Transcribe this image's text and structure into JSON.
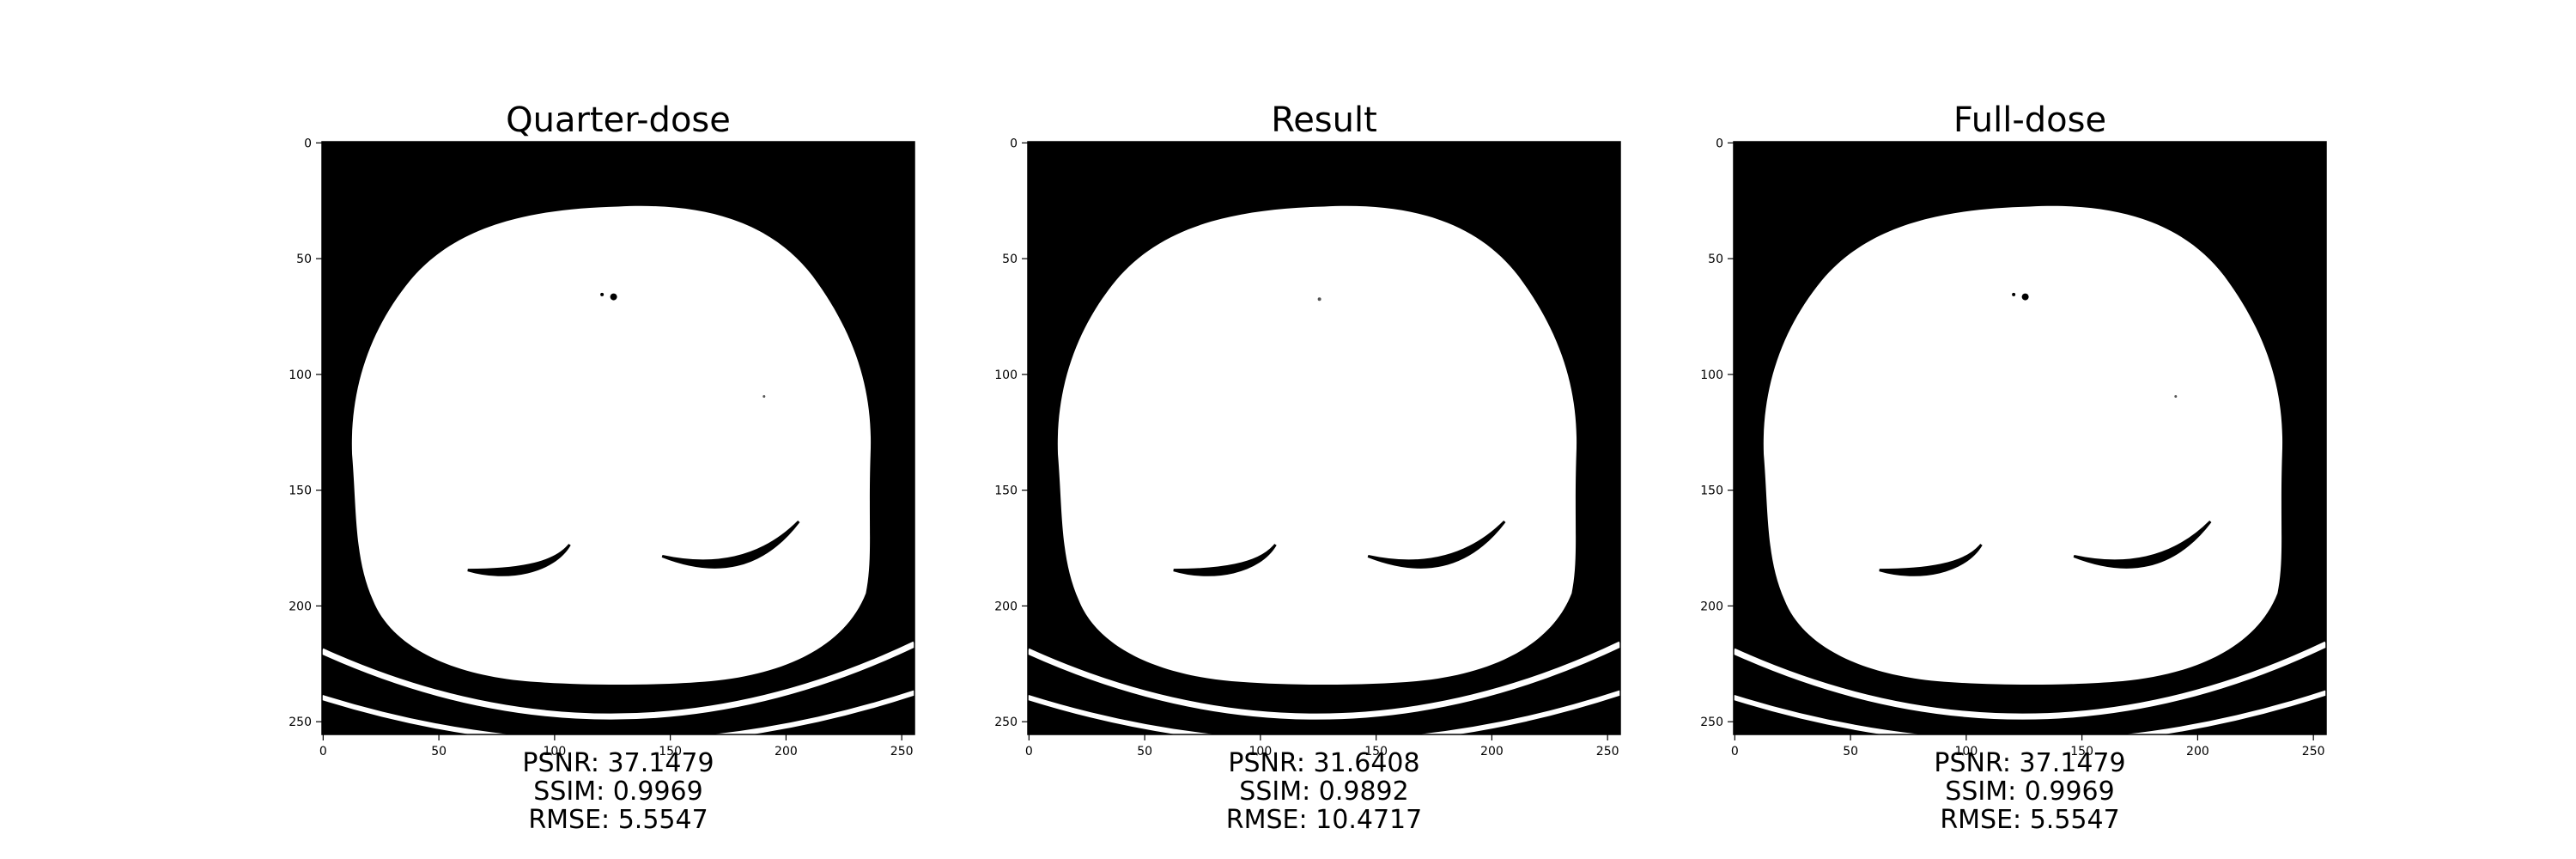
{
  "axes": {
    "y_ticks": [
      "0",
      "50",
      "100",
      "150",
      "200",
      "250"
    ],
    "x_ticks": [
      "0",
      "50",
      "100",
      "150",
      "200",
      "250"
    ]
  },
  "panels": [
    {
      "title": "Quarter-dose",
      "metrics": {
        "psnr": "PSNR: 37.1479",
        "ssim": "SSIM: 0.9969",
        "rmse": "RMSE: 5.5547"
      }
    },
    {
      "title": "Result",
      "metrics": {
        "psnr": "PSNR: 31.6408",
        "ssim": "SSIM: 0.9892",
        "rmse": "RMSE: 10.4717"
      }
    },
    {
      "title": "Full-dose",
      "metrics": {
        "psnr": "PSNR: 37.1479",
        "ssim": "SSIM: 0.9969",
        "rmse": "RMSE: 5.5547"
      }
    }
  ]
}
